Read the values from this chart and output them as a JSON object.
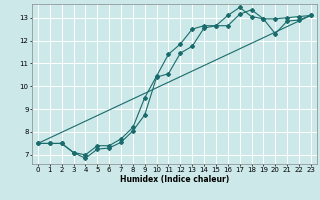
{
  "xlabel": "Humidex (Indice chaleur)",
  "xlim": [
    -0.5,
    23.5
  ],
  "ylim": [
    6.6,
    13.6
  ],
  "yticks": [
    7,
    8,
    9,
    10,
    11,
    12,
    13
  ],
  "xticks": [
    0,
    1,
    2,
    3,
    4,
    5,
    6,
    7,
    8,
    9,
    10,
    11,
    12,
    13,
    14,
    15,
    16,
    17,
    18,
    19,
    20,
    21,
    22,
    23
  ],
  "bg_color": "#cce8e8",
  "grid_color": "#ffffff",
  "line_color": "#1a6b6b",
  "line1_x": [
    0,
    1,
    2,
    3,
    4,
    5,
    6,
    7,
    8,
    9,
    10,
    11,
    12,
    13,
    14,
    15,
    16,
    17,
    18,
    19,
    20,
    21,
    22,
    23
  ],
  "line1_y": [
    7.5,
    7.5,
    7.5,
    7.1,
    6.85,
    7.25,
    7.3,
    7.55,
    8.05,
    8.75,
    10.4,
    10.55,
    11.45,
    11.75,
    12.55,
    12.65,
    12.65,
    13.15,
    13.35,
    12.95,
    12.3,
    12.85,
    12.9,
    13.1
  ],
  "line2_x": [
    0,
    1,
    2,
    3,
    4,
    5,
    6,
    7,
    8,
    9,
    10,
    11,
    12,
    13,
    14,
    15,
    16,
    17,
    18,
    19,
    20,
    21,
    22,
    23
  ],
  "line2_y": [
    7.5,
    7.5,
    7.5,
    7.1,
    7.0,
    7.4,
    7.4,
    7.7,
    8.2,
    9.5,
    10.45,
    11.4,
    11.85,
    12.5,
    12.65,
    12.65,
    13.1,
    13.45,
    13.05,
    12.95,
    12.95,
    13.0,
    13.05,
    13.1
  ],
  "line3_x": [
    0,
    23
  ],
  "line3_y": [
    7.5,
    13.1
  ]
}
